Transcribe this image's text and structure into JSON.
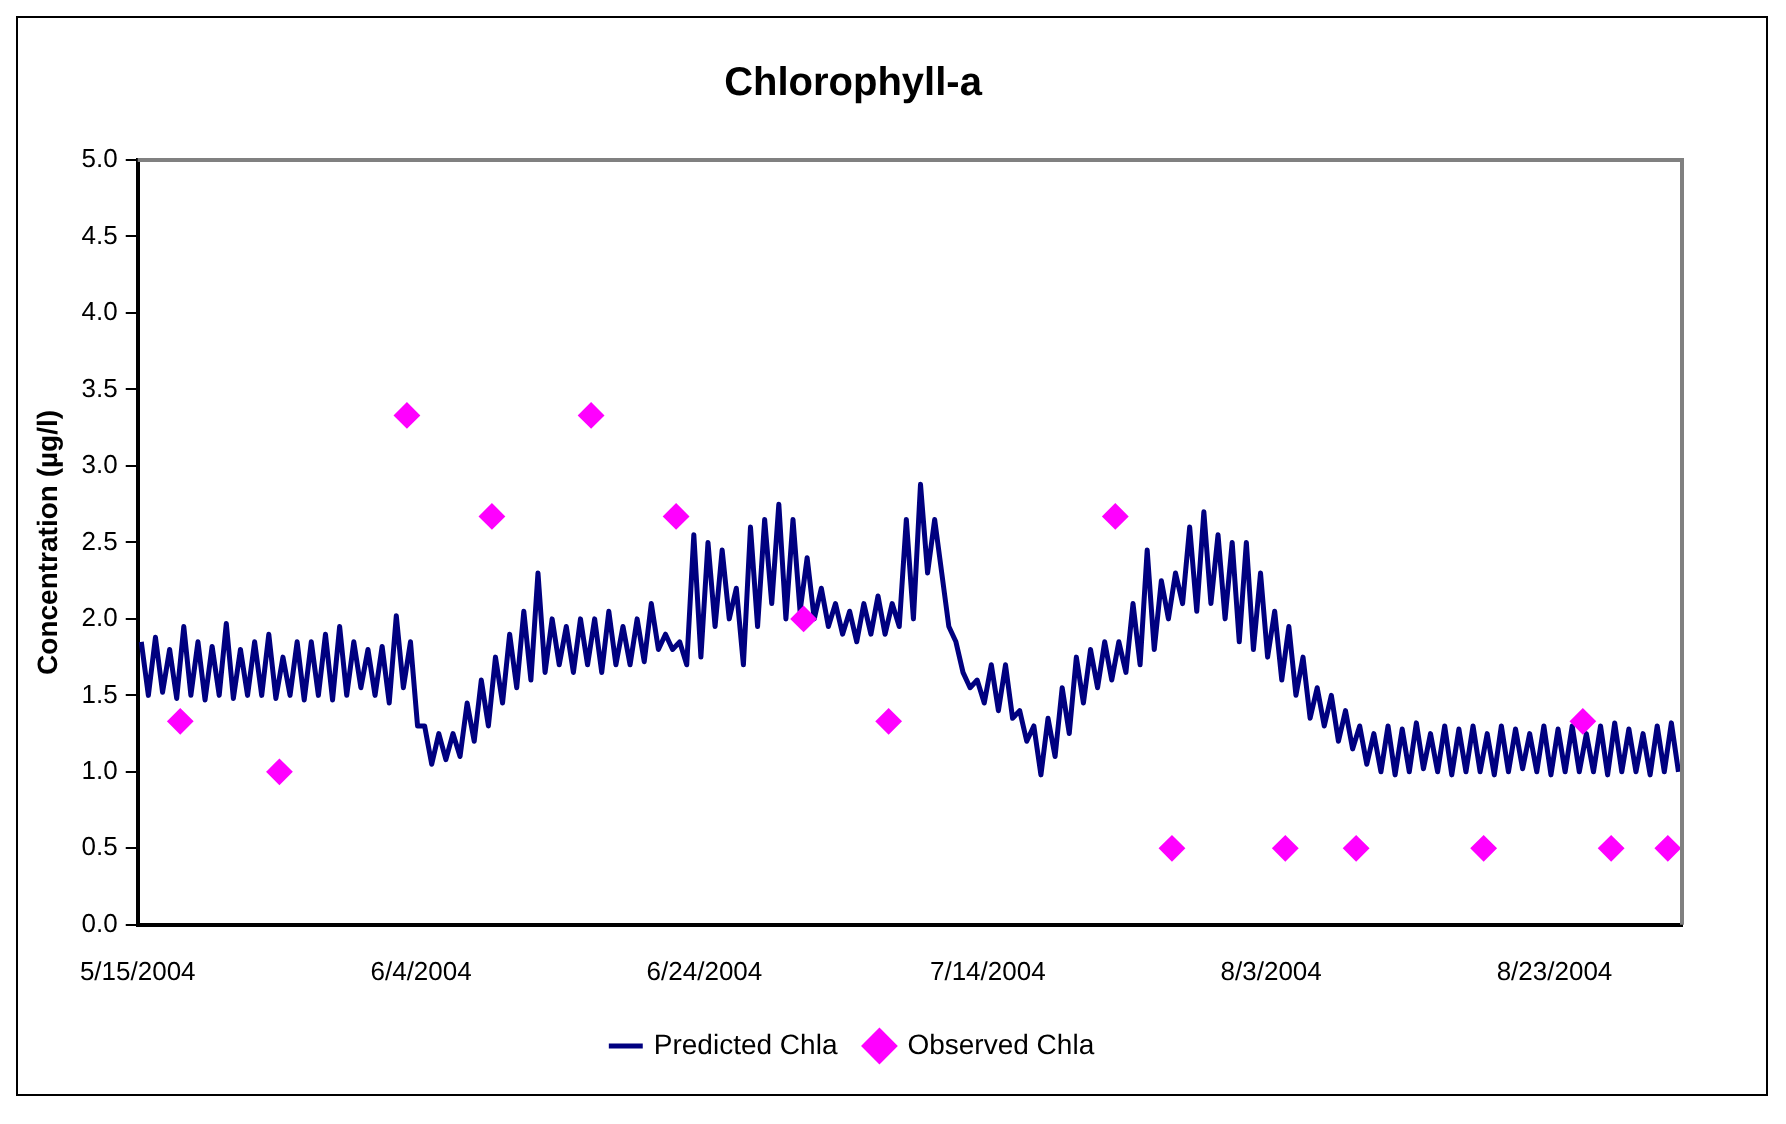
{
  "chart_data": {
    "type": "line",
    "title": "Chlorophyll-a",
    "ylabel": "Concentration (µg/l)",
    "legend": "bottom",
    "grid": false,
    "xlim": [
      "2004-05-15",
      "2004-09-01"
    ],
    "xticks": [
      {
        "value": "2004-05-15",
        "label": "5/15/2004"
      },
      {
        "value": "2004-06-04",
        "label": "6/4/2004"
      },
      {
        "value": "2004-06-24",
        "label": "6/24/2004"
      },
      {
        "value": "2004-07-14",
        "label": "7/14/2004"
      },
      {
        "value": "2004-08-03",
        "label": "8/3/2004"
      },
      {
        "value": "2004-08-23",
        "label": "8/23/2004"
      }
    ],
    "ylim": [
      0,
      5
    ],
    "yticks": [
      {
        "value": 0,
        "label": "0.0"
      },
      {
        "value": 0.5,
        "label": "0.5"
      },
      {
        "value": 1,
        "label": "1.0"
      },
      {
        "value": 1.5,
        "label": "1.5"
      },
      {
        "value": 2,
        "label": "2.0"
      },
      {
        "value": 2.5,
        "label": "2.5"
      },
      {
        "value": 3,
        "label": "3.0"
      },
      {
        "value": 3.5,
        "label": "3.5"
      },
      {
        "value": 4,
        "label": "4.0"
      },
      {
        "value": 4.5,
        "label": "4.5"
      },
      {
        "value": 5,
        "label": "5.0"
      }
    ],
    "series": [
      {
        "name": "Predicted Chla",
        "color": "#000080",
        "marker": "none",
        "line_style": "solid",
        "x": [
          "2004-05-15T06:00",
          "2004-05-15T18:00",
          "2004-05-16T06:00",
          "2004-05-16T18:00",
          "2004-05-17T06:00",
          "2004-05-17T18:00",
          "2004-05-18T06:00",
          "2004-05-18T18:00",
          "2004-05-19T06:00",
          "2004-05-19T18:00",
          "2004-05-20T06:00",
          "2004-05-20T18:00",
          "2004-05-21T06:00",
          "2004-05-21T18:00",
          "2004-05-22T06:00",
          "2004-05-22T18:00",
          "2004-05-23T06:00",
          "2004-05-23T18:00",
          "2004-05-24T06:00",
          "2004-05-24T18:00",
          "2004-05-25T06:00",
          "2004-05-25T18:00",
          "2004-05-26T06:00",
          "2004-05-26T18:00",
          "2004-05-27T06:00",
          "2004-05-27T18:00",
          "2004-05-28T06:00",
          "2004-05-28T18:00",
          "2004-05-29T06:00",
          "2004-05-29T18:00",
          "2004-05-30T06:00",
          "2004-05-30T18:00",
          "2004-05-31T06:00",
          "2004-05-31T18:00",
          "2004-06-01T06:00",
          "2004-06-01T18:00",
          "2004-06-02T06:00",
          "2004-06-02T18:00",
          "2004-06-03T06:00",
          "2004-06-03T18:00",
          "2004-06-04T06:00",
          "2004-06-04T18:00",
          "2004-06-05T06:00",
          "2004-06-05T18:00",
          "2004-06-06T06:00",
          "2004-06-06T18:00",
          "2004-06-07T06:00",
          "2004-06-07T18:00",
          "2004-06-08T06:00",
          "2004-06-08T18:00",
          "2004-06-09T06:00",
          "2004-06-09T18:00",
          "2004-06-10T06:00",
          "2004-06-10T18:00",
          "2004-06-11T06:00",
          "2004-06-11T18:00",
          "2004-06-12T06:00",
          "2004-06-12T18:00",
          "2004-06-13T06:00",
          "2004-06-13T18:00",
          "2004-06-14T06:00",
          "2004-06-14T18:00",
          "2004-06-15T06:00",
          "2004-06-15T18:00",
          "2004-06-16T06:00",
          "2004-06-16T18:00",
          "2004-06-17T06:00",
          "2004-06-17T18:00",
          "2004-06-18T06:00",
          "2004-06-18T18:00",
          "2004-06-19T06:00",
          "2004-06-19T18:00",
          "2004-06-20T06:00",
          "2004-06-20T18:00",
          "2004-06-21T06:00",
          "2004-06-21T18:00",
          "2004-06-22T06:00",
          "2004-06-22T18:00",
          "2004-06-23T06:00",
          "2004-06-23T18:00",
          "2004-06-24T06:00",
          "2004-06-24T18:00",
          "2004-06-25T06:00",
          "2004-06-25T18:00",
          "2004-06-26T06:00",
          "2004-06-26T18:00",
          "2004-06-27T06:00",
          "2004-06-27T18:00",
          "2004-06-28T06:00",
          "2004-06-28T18:00",
          "2004-06-29T06:00",
          "2004-06-29T18:00",
          "2004-06-30T06:00",
          "2004-06-30T18:00",
          "2004-07-01T06:00",
          "2004-07-01T18:00",
          "2004-07-02T06:00",
          "2004-07-02T18:00",
          "2004-07-03T06:00",
          "2004-07-03T18:00",
          "2004-07-04T06:00",
          "2004-07-04T18:00",
          "2004-07-05T06:00",
          "2004-07-05T18:00",
          "2004-07-06T06:00",
          "2004-07-06T18:00",
          "2004-07-07T06:00",
          "2004-07-07T18:00",
          "2004-07-08T06:00",
          "2004-07-08T18:00",
          "2004-07-09T06:00",
          "2004-07-09T18:00",
          "2004-07-10T06:00",
          "2004-07-10T18:00",
          "2004-07-11T06:00",
          "2004-07-11T18:00",
          "2004-07-12T06:00",
          "2004-07-12T18:00",
          "2004-07-13T06:00",
          "2004-07-13T18:00",
          "2004-07-14T06:00",
          "2004-07-14T18:00",
          "2004-07-15T06:00",
          "2004-07-15T18:00",
          "2004-07-16T06:00",
          "2004-07-16T18:00",
          "2004-07-17T06:00",
          "2004-07-17T18:00",
          "2004-07-18T06:00",
          "2004-07-18T18:00",
          "2004-07-19T06:00",
          "2004-07-19T18:00",
          "2004-07-20T06:00",
          "2004-07-20T18:00",
          "2004-07-21T06:00",
          "2004-07-21T18:00",
          "2004-07-22T06:00",
          "2004-07-22T18:00",
          "2004-07-23T06:00",
          "2004-07-23T18:00",
          "2004-07-24T06:00",
          "2004-07-24T18:00",
          "2004-07-25T06:00",
          "2004-07-25T18:00",
          "2004-07-26T06:00",
          "2004-07-26T18:00",
          "2004-07-27T06:00",
          "2004-07-27T18:00",
          "2004-07-28T06:00",
          "2004-07-28T18:00",
          "2004-07-29T06:00",
          "2004-07-29T18:00",
          "2004-07-30T06:00",
          "2004-07-30T18:00",
          "2004-07-31T06:00",
          "2004-07-31T18:00",
          "2004-08-01T06:00",
          "2004-08-01T18:00",
          "2004-08-02T06:00",
          "2004-08-02T18:00",
          "2004-08-03T06:00",
          "2004-08-03T18:00",
          "2004-08-04T06:00",
          "2004-08-04T18:00",
          "2004-08-05T06:00",
          "2004-08-05T18:00",
          "2004-08-06T06:00",
          "2004-08-06T18:00",
          "2004-08-07T06:00",
          "2004-08-07T18:00",
          "2004-08-08T06:00",
          "2004-08-08T18:00",
          "2004-08-09T06:00",
          "2004-08-09T18:00",
          "2004-08-10T06:00",
          "2004-08-10T18:00",
          "2004-08-11T06:00",
          "2004-08-11T18:00",
          "2004-08-12T06:00",
          "2004-08-12T18:00",
          "2004-08-13T06:00",
          "2004-08-13T18:00",
          "2004-08-14T06:00",
          "2004-08-14T18:00",
          "2004-08-15T06:00",
          "2004-08-15T18:00",
          "2004-08-16T06:00",
          "2004-08-16T18:00",
          "2004-08-17T06:00",
          "2004-08-17T18:00",
          "2004-08-18T06:00",
          "2004-08-18T18:00",
          "2004-08-19T06:00",
          "2004-08-19T18:00",
          "2004-08-20T06:00",
          "2004-08-20T18:00",
          "2004-08-21T06:00",
          "2004-08-21T18:00",
          "2004-08-22T06:00",
          "2004-08-22T18:00",
          "2004-08-23T06:00",
          "2004-08-23T18:00",
          "2004-08-24T06:00",
          "2004-08-24T18:00",
          "2004-08-25T06:00",
          "2004-08-25T18:00",
          "2004-08-26T06:00",
          "2004-08-26T18:00",
          "2004-08-27T06:00",
          "2004-08-27T18:00",
          "2004-08-28T06:00",
          "2004-08-28T18:00",
          "2004-08-29T06:00",
          "2004-08-29T18:00",
          "2004-08-30T06:00",
          "2004-08-30T18:00",
          "2004-08-31T06:00",
          "2004-08-31T18:00"
        ],
        "values": [
          1.85,
          1.5,
          1.88,
          1.52,
          1.8,
          1.48,
          1.95,
          1.5,
          1.85,
          1.47,
          1.82,
          1.5,
          1.97,
          1.48,
          1.8,
          1.5,
          1.85,
          1.5,
          1.9,
          1.48,
          1.75,
          1.5,
          1.85,
          1.47,
          1.85,
          1.5,
          1.9,
          1.47,
          1.95,
          1.5,
          1.85,
          1.55,
          1.8,
          1.5,
          1.82,
          1.45,
          2.02,
          1.55,
          1.85,
          1.3,
          1.3,
          1.05,
          1.25,
          1.08,
          1.25,
          1.1,
          1.45,
          1.2,
          1.6,
          1.3,
          1.75,
          1.45,
          1.9,
          1.55,
          2.05,
          1.6,
          2.3,
          1.65,
          2.0,
          1.7,
          1.95,
          1.65,
          2.0,
          1.7,
          2.0,
          1.65,
          2.05,
          1.7,
          1.95,
          1.7,
          2.0,
          1.72,
          2.1,
          1.8,
          1.9,
          1.8,
          1.85,
          1.7,
          2.55,
          1.75,
          2.5,
          1.95,
          2.45,
          2.0,
          2.2,
          1.7,
          2.6,
          1.95,
          2.65,
          2.1,
          2.75,
          2.0,
          2.65,
          2.05,
          2.4,
          2.0,
          2.2,
          1.95,
          2.1,
          1.9,
          2.05,
          1.85,
          2.1,
          1.9,
          2.15,
          1.9,
          2.1,
          1.95,
          2.65,
          2.0,
          2.88,
          2.3,
          2.65,
          2.3,
          1.95,
          1.85,
          1.65,
          1.55,
          1.6,
          1.45,
          1.7,
          1.4,
          1.7,
          1.35,
          1.4,
          1.2,
          1.3,
          0.98,
          1.35,
          1.1,
          1.55,
          1.25,
          1.75,
          1.45,
          1.8,
          1.55,
          1.85,
          1.6,
          1.85,
          1.65,
          2.1,
          1.7,
          2.45,
          1.8,
          2.25,
          2.0,
          2.3,
          2.1,
          2.6,
          2.05,
          2.7,
          2.1,
          2.55,
          2.0,
          2.5,
          1.85,
          2.5,
          1.8,
          2.3,
          1.75,
          2.05,
          1.6,
          1.95,
          1.5,
          1.75,
          1.35,
          1.55,
          1.3,
          1.5,
          1.2,
          1.4,
          1.15,
          1.3,
          1.05,
          1.25,
          1.0,
          1.3,
          0.98,
          1.28,
          1.0,
          1.32,
          1.02,
          1.25,
          1.0,
          1.3,
          0.98,
          1.28,
          1.0,
          1.3,
          1.0,
          1.25,
          0.98,
          1.3,
          1.0,
          1.28,
          1.02,
          1.25,
          1.0,
          1.3,
          0.98,
          1.28,
          1.0,
          1.3,
          1.0,
          1.25,
          1.0,
          1.3,
          0.98,
          1.32,
          1.0,
          1.28,
          1.0,
          1.25,
          0.98,
          1.3,
          1.0,
          1.32,
          1.0
        ]
      },
      {
        "name": "Observed Chla",
        "type": "scatter",
        "color": "#ff00ff",
        "marker": "diamond",
        "x": [
          "2004-05-18",
          "2004-05-25",
          "2004-06-03",
          "2004-06-09",
          "2004-06-16",
          "2004-06-22",
          "2004-07-01",
          "2004-07-07",
          "2004-07-23",
          "2004-07-27",
          "2004-08-04",
          "2004-08-09",
          "2004-08-18",
          "2004-08-25",
          "2004-08-27",
          "2004-08-31"
        ],
        "values": [
          1.33,
          1.0,
          3.33,
          2.67,
          3.33,
          2.67,
          2.0,
          1.33,
          2.67,
          0.5,
          0.5,
          0.5,
          0.5,
          1.33,
          0.5,
          0.5
        ]
      }
    ]
  }
}
